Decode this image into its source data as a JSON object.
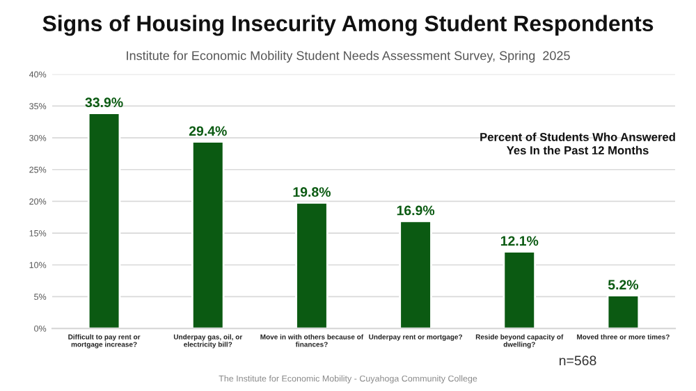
{
  "chart_data": {
    "type": "bar",
    "title": "Signs of Housing Insecurity Among Student Respondents",
    "subtitle": "Institute for Economic Mobility Student Needs Assessment Survey, Spring  2025",
    "categories": [
      "Difficult to pay rent or\nmortgage increase?",
      "Underpay gas, oil, or\nelectricity bill?",
      "Move in with others because of\nfinances?",
      "Underpay rent or mortgage?",
      "Reside beyond capacity of\ndwelling?",
      "Moved three or more times?"
    ],
    "values": [
      33.9,
      29.4,
      19.8,
      16.9,
      12.1,
      5.2
    ],
    "value_labels": [
      "33.9%",
      "29.4%",
      "19.8%",
      "16.9%",
      "12.1%",
      "5.2%"
    ],
    "color": "#0b5a12",
    "ylim": [
      0,
      40
    ],
    "yticks": [
      {
        "value": 0,
        "label": "0%"
      },
      {
        "value": 5,
        "label": "5%"
      },
      {
        "value": 10,
        "label": "10%"
      },
      {
        "value": 15,
        "label": "15%"
      },
      {
        "value": 20,
        "label": "20%"
      },
      {
        "value": 25,
        "label": "25%"
      },
      {
        "value": 30,
        "label": "30%"
      },
      {
        "value": 35,
        "label": "35%"
      },
      {
        "value": 40,
        "label": "40%"
      }
    ],
    "grid": "y",
    "annotations": [
      "Percent of Students Who Answered\nYes In the Past 12 Months",
      "n=568",
      "The Institute for Economic Mobility - Cuyahoga Community College"
    ]
  }
}
